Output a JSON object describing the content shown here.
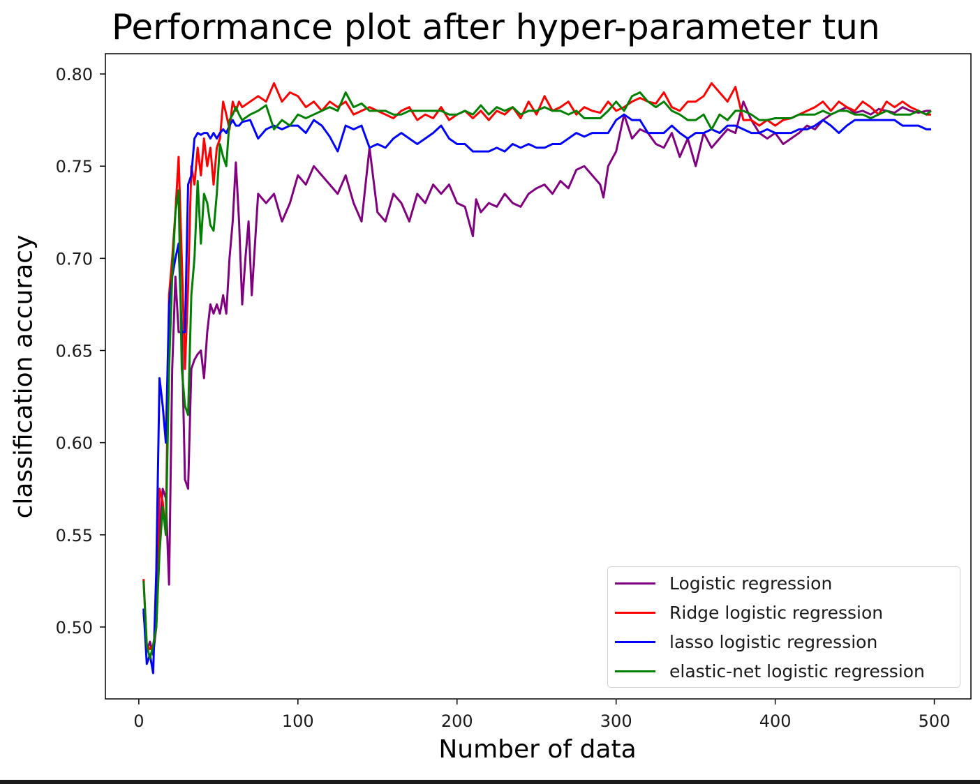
{
  "title": "Performance plot after hyper-parameter tun",
  "colors": {
    "logistic": "#800080",
    "ridge": "#ff0000",
    "lasso": "#0000ff",
    "elastic": "#008000",
    "axes": "#000000"
  },
  "chart_data": {
    "type": "line",
    "title": "Performance plot after hyper-parameter tun",
    "xlabel": "Number of data",
    "ylabel": "classification accuracy",
    "xlim": [
      -21,
      523
    ],
    "ylim": [
      0.461,
      0.811
    ],
    "xticks": [
      0,
      100,
      200,
      300,
      400,
      500
    ],
    "xtick_labels": [
      "0",
      "100",
      "200",
      "300",
      "400",
      "500"
    ],
    "yticks": [
      0.5,
      0.55,
      0.6,
      0.65,
      0.7,
      0.75,
      0.8
    ],
    "ytick_labels": [
      "0.50",
      "0.55",
      "0.60",
      "0.65",
      "0.70",
      "0.75",
      "0.80"
    ],
    "grid": false,
    "legend_position": "lower-right",
    "series": [
      {
        "name": "Logistic regression",
        "color": "#800080",
        "x": [
          3,
          5,
          7,
          9,
          11,
          13,
          15,
          17,
          19,
          21,
          23,
          25,
          27,
          29,
          31,
          33,
          35,
          37,
          39,
          41,
          43,
          45,
          47,
          49,
          51,
          53,
          55,
          57,
          59,
          61,
          63,
          65,
          67,
          69,
          71,
          75,
          80,
          85,
          90,
          95,
          100,
          105,
          110,
          115,
          120,
          125,
          130,
          135,
          140,
          145,
          150,
          155,
          160,
          165,
          170,
          175,
          180,
          185,
          190,
          195,
          200,
          205,
          210,
          212,
          215,
          220,
          225,
          230,
          235,
          240,
          245,
          250,
          255,
          260,
          265,
          270,
          275,
          280,
          285,
          290,
          292,
          295,
          300,
          305,
          310,
          315,
          320,
          325,
          330,
          335,
          340,
          345,
          350,
          355,
          360,
          365,
          370,
          375,
          380,
          385,
          390,
          395,
          400,
          405,
          410,
          415,
          420,
          425,
          430,
          435,
          440,
          445,
          450,
          455,
          460,
          465,
          470,
          475,
          480,
          485,
          490,
          495,
          498
        ],
        "values": [
          0.508,
          0.487,
          0.492,
          0.485,
          0.5,
          0.55,
          0.575,
          0.57,
          0.523,
          0.64,
          0.69,
          0.66,
          0.66,
          0.58,
          0.575,
          0.64,
          0.645,
          0.648,
          0.65,
          0.635,
          0.66,
          0.675,
          0.67,
          0.675,
          0.67,
          0.68,
          0.67,
          0.7,
          0.72,
          0.752,
          0.72,
          0.675,
          0.7,
          0.72,
          0.68,
          0.735,
          0.73,
          0.735,
          0.72,
          0.73,
          0.745,
          0.74,
          0.75,
          0.745,
          0.74,
          0.735,
          0.745,
          0.73,
          0.72,
          0.76,
          0.725,
          0.72,
          0.735,
          0.73,
          0.72,
          0.735,
          0.73,
          0.74,
          0.735,
          0.74,
          0.73,
          0.728,
          0.712,
          0.732,
          0.725,
          0.73,
          0.728,
          0.735,
          0.73,
          0.728,
          0.735,
          0.738,
          0.74,
          0.735,
          0.742,
          0.738,
          0.748,
          0.75,
          0.745,
          0.74,
          0.733,
          0.75,
          0.758,
          0.778,
          0.765,
          0.77,
          0.768,
          0.762,
          0.76,
          0.768,
          0.755,
          0.765,
          0.75,
          0.768,
          0.76,
          0.765,
          0.77,
          0.768,
          0.785,
          0.775,
          0.768,
          0.765,
          0.768,
          0.762,
          0.765,
          0.768,
          0.772,
          0.77,
          0.775,
          0.778,
          0.78,
          0.782,
          0.779,
          0.78,
          0.778,
          0.781,
          0.78,
          0.779,
          0.782,
          0.78,
          0.779,
          0.78,
          0.78
        ]
      },
      {
        "name": "Ridge logistic regression",
        "color": "#ff0000",
        "x": [
          3,
          5,
          7,
          9,
          11,
          13,
          15,
          17,
          19,
          21,
          23,
          25,
          27,
          29,
          31,
          33,
          35,
          37,
          39,
          41,
          43,
          45,
          47,
          49,
          51,
          53,
          55,
          57,
          59,
          61,
          63,
          65,
          70,
          75,
          80,
          85,
          90,
          95,
          100,
          105,
          110,
          115,
          120,
          125,
          130,
          135,
          140,
          145,
          150,
          155,
          160,
          165,
          170,
          175,
          180,
          185,
          190,
          195,
          200,
          205,
          210,
          215,
          220,
          225,
          230,
          235,
          240,
          245,
          250,
          255,
          260,
          265,
          270,
          275,
          280,
          285,
          290,
          295,
          300,
          305,
          310,
          315,
          320,
          325,
          330,
          335,
          340,
          345,
          350,
          355,
          360,
          365,
          370,
          375,
          380,
          385,
          390,
          395,
          400,
          405,
          410,
          415,
          420,
          425,
          430,
          435,
          440,
          445,
          450,
          455,
          460,
          465,
          470,
          475,
          480,
          485,
          490,
          495,
          498
        ],
        "values": [
          0.526,
          0.49,
          0.488,
          0.49,
          0.5,
          0.575,
          0.568,
          0.55,
          0.68,
          0.7,
          0.725,
          0.755,
          0.7,
          0.64,
          0.685,
          0.75,
          0.74,
          0.76,
          0.745,
          0.765,
          0.75,
          0.76,
          0.74,
          0.76,
          0.765,
          0.785,
          0.778,
          0.77,
          0.785,
          0.78,
          0.785,
          0.782,
          0.785,
          0.788,
          0.785,
          0.795,
          0.785,
          0.79,
          0.788,
          0.782,
          0.785,
          0.78,
          0.785,
          0.782,
          0.785,
          0.778,
          0.78,
          0.782,
          0.78,
          0.778,
          0.776,
          0.78,
          0.782,
          0.775,
          0.778,
          0.776,
          0.782,
          0.775,
          0.778,
          0.78,
          0.776,
          0.78,
          0.775,
          0.78,
          0.778,
          0.782,
          0.776,
          0.785,
          0.778,
          0.788,
          0.78,
          0.782,
          0.785,
          0.778,
          0.782,
          0.78,
          0.779,
          0.785,
          0.78,
          0.782,
          0.785,
          0.787,
          0.785,
          0.784,
          0.79,
          0.782,
          0.78,
          0.785,
          0.785,
          0.788,
          0.795,
          0.79,
          0.785,
          0.793,
          0.775,
          0.775,
          0.772,
          0.775,
          0.772,
          0.775,
          0.776,
          0.778,
          0.78,
          0.782,
          0.785,
          0.78,
          0.785,
          0.782,
          0.78,
          0.785,
          0.782,
          0.778,
          0.785,
          0.782,
          0.785,
          0.782,
          0.78,
          0.778,
          0.778
        ]
      },
      {
        "name": "lasso logistic regression",
        "color": "#0000ff",
        "x": [
          3,
          5,
          7,
          9,
          11,
          13,
          15,
          17,
          19,
          21,
          23,
          25,
          27,
          29,
          31,
          33,
          35,
          37,
          39,
          41,
          43,
          45,
          47,
          49,
          51,
          53,
          55,
          57,
          59,
          61,
          63,
          65,
          70,
          75,
          80,
          85,
          90,
          95,
          100,
          105,
          110,
          115,
          120,
          125,
          130,
          135,
          140,
          145,
          150,
          155,
          160,
          165,
          170,
          175,
          180,
          185,
          190,
          195,
          200,
          205,
          210,
          215,
          220,
          225,
          230,
          235,
          240,
          245,
          250,
          255,
          260,
          265,
          270,
          275,
          280,
          285,
          290,
          295,
          300,
          305,
          310,
          315,
          320,
          325,
          330,
          335,
          340,
          345,
          350,
          355,
          360,
          365,
          370,
          375,
          380,
          385,
          390,
          395,
          400,
          405,
          410,
          415,
          420,
          425,
          430,
          435,
          440,
          445,
          450,
          455,
          460,
          465,
          470,
          475,
          480,
          485,
          490,
          495,
          498
        ],
        "values": [
          0.51,
          0.48,
          0.485,
          0.475,
          0.53,
          0.635,
          0.62,
          0.6,
          0.675,
          0.69,
          0.7,
          0.708,
          0.66,
          0.66,
          0.74,
          0.745,
          0.765,
          0.768,
          0.767,
          0.768,
          0.768,
          0.765,
          0.768,
          0.765,
          0.768,
          0.77,
          0.768,
          0.772,
          0.775,
          0.772,
          0.772,
          0.774,
          0.775,
          0.765,
          0.77,
          0.772,
          0.77,
          0.772,
          0.772,
          0.768,
          0.775,
          0.772,
          0.766,
          0.758,
          0.772,
          0.77,
          0.772,
          0.76,
          0.762,
          0.76,
          0.765,
          0.768,
          0.765,
          0.762,
          0.765,
          0.768,
          0.772,
          0.765,
          0.762,
          0.762,
          0.758,
          0.758,
          0.758,
          0.76,
          0.758,
          0.762,
          0.76,
          0.762,
          0.76,
          0.76,
          0.762,
          0.762,
          0.765,
          0.768,
          0.766,
          0.768,
          0.768,
          0.768,
          0.775,
          0.778,
          0.775,
          0.775,
          0.768,
          0.768,
          0.768,
          0.772,
          0.768,
          0.765,
          0.768,
          0.768,
          0.77,
          0.768,
          0.772,
          0.772,
          0.77,
          0.768,
          0.768,
          0.77,
          0.768,
          0.768,
          0.768,
          0.77,
          0.77,
          0.772,
          0.775,
          0.772,
          0.768,
          0.772,
          0.775,
          0.775,
          0.775,
          0.775,
          0.775,
          0.775,
          0.772,
          0.772,
          0.772,
          0.77,
          0.77
        ]
      },
      {
        "name": "elastic-net logistic regression",
        "color": "#008000",
        "x": [
          3,
          5,
          7,
          9,
          11,
          13,
          15,
          17,
          19,
          21,
          23,
          25,
          27,
          29,
          31,
          33,
          35,
          37,
          39,
          41,
          43,
          45,
          47,
          49,
          51,
          53,
          55,
          57,
          59,
          61,
          63,
          65,
          70,
          75,
          80,
          85,
          90,
          95,
          100,
          105,
          110,
          115,
          120,
          125,
          130,
          135,
          140,
          145,
          150,
          155,
          160,
          165,
          170,
          175,
          180,
          185,
          190,
          195,
          200,
          205,
          210,
          215,
          220,
          225,
          230,
          235,
          240,
          245,
          250,
          255,
          260,
          265,
          270,
          275,
          280,
          285,
          290,
          295,
          300,
          305,
          310,
          315,
          320,
          325,
          330,
          335,
          340,
          345,
          350,
          355,
          360,
          365,
          370,
          375,
          380,
          385,
          390,
          395,
          400,
          405,
          410,
          415,
          420,
          425,
          430,
          435,
          440,
          445,
          450,
          455,
          460,
          465,
          470,
          475,
          480,
          485,
          490,
          495,
          498
        ],
        "values": [
          0.525,
          0.49,
          0.483,
          0.49,
          0.5,
          0.54,
          0.565,
          0.55,
          0.64,
          0.69,
          0.725,
          0.737,
          0.64,
          0.62,
          0.615,
          0.68,
          0.7,
          0.742,
          0.708,
          0.735,
          0.73,
          0.718,
          0.715,
          0.735,
          0.762,
          0.755,
          0.75,
          0.775,
          0.778,
          0.782,
          0.778,
          0.775,
          0.778,
          0.78,
          0.783,
          0.77,
          0.775,
          0.772,
          0.778,
          0.776,
          0.778,
          0.78,
          0.782,
          0.78,
          0.79,
          0.782,
          0.784,
          0.78,
          0.78,
          0.78,
          0.778,
          0.778,
          0.78,
          0.78,
          0.78,
          0.78,
          0.78,
          0.778,
          0.778,
          0.78,
          0.778,
          0.783,
          0.778,
          0.782,
          0.78,
          0.782,
          0.778,
          0.78,
          0.78,
          0.782,
          0.78,
          0.78,
          0.778,
          0.78,
          0.776,
          0.776,
          0.776,
          0.78,
          0.785,
          0.78,
          0.788,
          0.79,
          0.785,
          0.782,
          0.785,
          0.78,
          0.778,
          0.775,
          0.775,
          0.778,
          0.77,
          0.778,
          0.775,
          0.78,
          0.78,
          0.778,
          0.775,
          0.775,
          0.776,
          0.776,
          0.776,
          0.778,
          0.778,
          0.778,
          0.78,
          0.778,
          0.78,
          0.78,
          0.778,
          0.778,
          0.776,
          0.778,
          0.78,
          0.778,
          0.778,
          0.778,
          0.78,
          0.778,
          0.78
        ]
      }
    ]
  }
}
